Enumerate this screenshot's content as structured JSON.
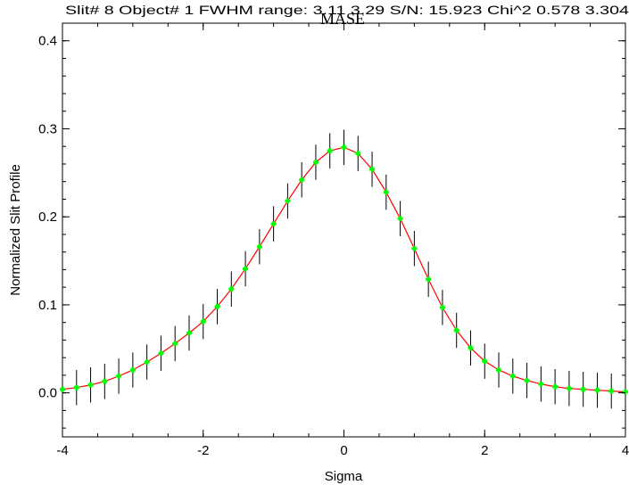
{
  "chart_data": {
    "type": "scatter",
    "title": "Slit# 8 Object# 1 FWHM range: 3.11 3.29 S/N: 15.923 Chi^2 0.578 3.304",
    "overlay_title": "MASE",
    "xlabel": "Sigma",
    "ylabel": "Normalized Slit Profile",
    "xlim": [
      -4,
      4
    ],
    "ylim": [
      -0.05,
      0.42
    ],
    "x_ticks": [
      -4,
      -2,
      0,
      2,
      4
    ],
    "x_tick_labels": [
      "-4",
      "-2",
      "0",
      "2",
      "4"
    ],
    "y_ticks": [
      0.0,
      0.1,
      0.2,
      0.3,
      0.4
    ],
    "y_tick_labels": [
      "0.0",
      "0.1",
      "0.2",
      "0.3",
      "0.4"
    ],
    "grid": false,
    "series": [
      {
        "kind": "points-with-errorbars",
        "color": "#00ff00",
        "errorbar_color": "#000000",
        "x": [
          -4.0,
          -3.8,
          -3.6,
          -3.4,
          -3.2,
          -3.0,
          -2.8,
          -2.6,
          -2.4,
          -2.2,
          -2.0,
          -1.8,
          -1.6,
          -1.4,
          -1.2,
          -1.0,
          -0.8,
          -0.6,
          -0.4,
          -0.2,
          0.0,
          0.2,
          0.4,
          0.6,
          0.8,
          1.0,
          1.2,
          1.4,
          1.6,
          1.8,
          2.0,
          2.2,
          2.4,
          2.6,
          2.8,
          3.0,
          3.2,
          3.4,
          3.6,
          3.8,
          4.0
        ],
        "y": [
          0.004,
          0.006,
          0.009,
          0.013,
          0.019,
          0.026,
          0.035,
          0.045,
          0.056,
          0.068,
          0.081,
          0.098,
          0.118,
          0.141,
          0.166,
          0.192,
          0.218,
          0.242,
          0.262,
          0.275,
          0.279,
          0.272,
          0.254,
          0.228,
          0.198,
          0.164,
          0.129,
          0.097,
          0.071,
          0.051,
          0.036,
          0.026,
          0.019,
          0.014,
          0.01,
          0.007,
          0.005,
          0.004,
          0.003,
          0.002,
          0.001
        ],
        "yerr": 0.02
      },
      {
        "kind": "fit-line",
        "color": "#ff0000",
        "x": [
          -4.0,
          -3.8,
          -3.6,
          -3.4,
          -3.2,
          -3.0,
          -2.8,
          -2.6,
          -2.4,
          -2.2,
          -2.0,
          -1.8,
          -1.6,
          -1.4,
          -1.2,
          -1.0,
          -0.8,
          -0.6,
          -0.4,
          -0.2,
          0.0,
          0.2,
          0.4,
          0.6,
          0.8,
          1.0,
          1.2,
          1.4,
          1.6,
          1.8,
          2.0,
          2.2,
          2.4,
          2.6,
          2.8,
          3.0,
          3.2,
          3.4,
          3.6,
          3.8,
          4.0
        ],
        "y": [
          0.004,
          0.006,
          0.009,
          0.013,
          0.019,
          0.026,
          0.035,
          0.045,
          0.056,
          0.068,
          0.081,
          0.098,
          0.118,
          0.141,
          0.166,
          0.192,
          0.218,
          0.242,
          0.262,
          0.275,
          0.279,
          0.272,
          0.254,
          0.228,
          0.198,
          0.164,
          0.129,
          0.097,
          0.071,
          0.051,
          0.036,
          0.026,
          0.019,
          0.014,
          0.01,
          0.007,
          0.005,
          0.004,
          0.003,
          0.002,
          0.001
        ]
      }
    ]
  }
}
